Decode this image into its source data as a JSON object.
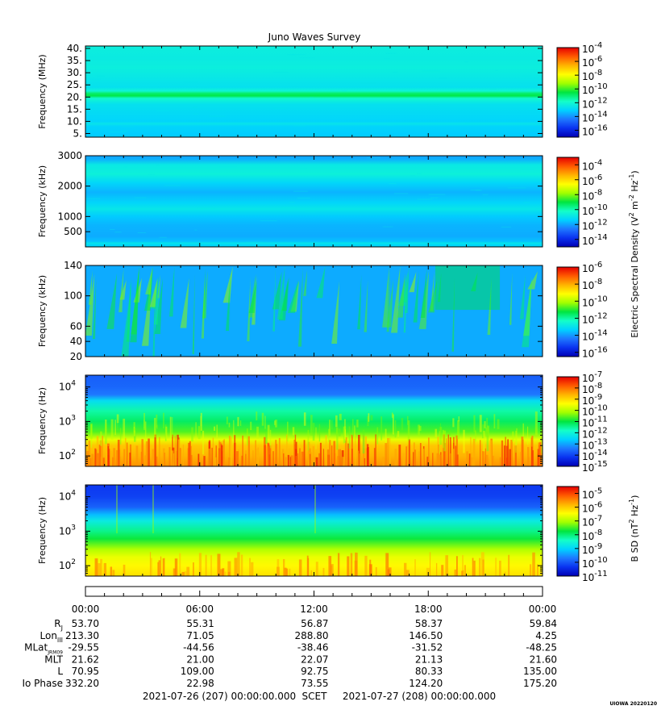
{
  "title": "Juno Waves Survey",
  "credit": "UIOWA 20220120",
  "unit_labels": {
    "electric": [
      "Electric Spectral Density (V",
      "2",
      " m",
      "-2",
      " Hz",
      "-1",
      ")"
    ],
    "magnetic": [
      "B SD (nT",
      "2",
      " Hz",
      "-1",
      ")"
    ]
  },
  "colors": {
    "scale": [
      "#0000b4",
      "#0a32f0",
      "#1e78ff",
      "#00d2ff",
      "#14ffc8",
      "#00e640",
      "#a0ff00",
      "#ffff00",
      "#ffb400",
      "#ff5a00",
      "#e60000"
    ]
  },
  "chart_data": [
    {
      "type": "heatmap",
      "panel": 1,
      "ylabel": "Frequency (MHz)",
      "yscale": "linear",
      "ylim": [
        3.5,
        41
      ],
      "yticks": [
        {
          "v": 5,
          "t": "5."
        },
        {
          "v": 10,
          "t": "10."
        },
        {
          "v": 15,
          "t": "15."
        },
        {
          "v": 20,
          "t": "20."
        },
        {
          "v": 25,
          "t": "25."
        },
        {
          "v": 30,
          "t": "30."
        },
        {
          "v": 35,
          "t": "35."
        },
        {
          "v": 40,
          "t": "40."
        }
      ],
      "colorbar": {
        "log_range": [
          -17,
          -4
        ],
        "ticks": [
          -4,
          -6,
          -8,
          -10,
          -12,
          -14,
          -16
        ]
      },
      "bands": [
        {
          "f": 3.5,
          "v": -13.2
        },
        {
          "f": 8,
          "v": -13.0
        },
        {
          "f": 9,
          "v": -12.6
        },
        {
          "f": 10,
          "v": -13.0
        },
        {
          "f": 17,
          "v": -12.7
        },
        {
          "f": 19.5,
          "v": -12.0
        },
        {
          "f": 20.5,
          "v": -10.6
        },
        {
          "f": 21.5,
          "v": -10.9
        },
        {
          "f": 22.5,
          "v": -12.1
        },
        {
          "f": 24,
          "v": -12.7
        },
        {
          "f": 28,
          "v": -12.5
        },
        {
          "f": 32,
          "v": -12.3
        },
        {
          "f": 36,
          "v": -12.4
        },
        {
          "f": 41,
          "v": -12.3
        }
      ]
    },
    {
      "type": "heatmap",
      "panel": 2,
      "ylabel": "Frequency (kHz)",
      "yscale": "linear",
      "ylim": [
        0,
        3000
      ],
      "yticks": [
        {
          "v": 500,
          "t": "500"
        },
        {
          "v": 1000,
          "t": "1000"
        },
        {
          "v": 2000,
          "t": "2000"
        },
        {
          "v": 3000,
          "t": "3000"
        }
      ],
      "colorbar": {
        "log_range": [
          -15,
          -3
        ],
        "ticks": [
          -4,
          -6,
          -8,
          -10,
          -12,
          -14
        ]
      },
      "bands": [
        {
          "f": 0,
          "v": -11.4
        },
        {
          "f": 80,
          "v": -11.2
        },
        {
          "f": 120,
          "v": -10.9
        },
        {
          "f": 180,
          "v": -11.6
        },
        {
          "f": 350,
          "v": -11.9
        },
        {
          "f": 700,
          "v": -11.8
        },
        {
          "f": 1000,
          "v": -11.5
        },
        {
          "f": 1250,
          "v": -10.9
        },
        {
          "f": 1450,
          "v": -11.3
        },
        {
          "f": 1800,
          "v": -11.8
        },
        {
          "f": 2100,
          "v": -11.3
        },
        {
          "f": 2400,
          "v": -10.6
        },
        {
          "f": 2700,
          "v": -10.8
        },
        {
          "f": 2900,
          "v": -11.9
        },
        {
          "f": 3000,
          "v": -12.0
        }
      ]
    },
    {
      "type": "heatmap",
      "panel": 3,
      "ylabel": "Frequency (kHz)",
      "yscale": "linear",
      "ylim": [
        20,
        140
      ],
      "yticks": [
        {
          "v": 20,
          "t": "20"
        },
        {
          "v": 40,
          "t": "40"
        },
        {
          "v": 60,
          "t": "60"
        },
        {
          "v": 100,
          "t": "100"
        },
        {
          "v": 140,
          "t": "140"
        }
      ],
      "colorbar": {
        "log_range": [
          -16.5,
          -6
        ],
        "ticks": [
          -6,
          -8,
          -10,
          -12,
          -14,
          -16
        ]
      },
      "bands": [
        {
          "f": 20,
          "v": -13.8
        },
        {
          "f": 140,
          "v": -13.8
        }
      ]
    },
    {
      "type": "heatmap",
      "panel": 4,
      "ylabel": "Frequency (Hz)",
      "yscale": "log",
      "ylim": [
        50,
        22000
      ],
      "yticks": [
        {
          "v": 100,
          "t": "10",
          "e": "2"
        },
        {
          "v": 1000,
          "t": "10",
          "e": "3"
        },
        {
          "v": 10000,
          "t": "10",
          "e": "4"
        }
      ],
      "colorbar": {
        "log_range": [
          -15,
          -7
        ],
        "ticks": [
          -7,
          -8,
          -9,
          -10,
          -11,
          -12,
          -13,
          -14,
          -15
        ]
      },
      "bands": [
        {
          "f": 50,
          "v": -8.3
        },
        {
          "f": 100,
          "v": -8.6
        },
        {
          "f": 200,
          "v": -8.8
        },
        {
          "f": 300,
          "v": -9.6
        },
        {
          "f": 500,
          "v": -10.6
        },
        {
          "f": 1000,
          "v": -11.2
        },
        {
          "f": 2000,
          "v": -11.6
        },
        {
          "f": 4000,
          "v": -12.4
        },
        {
          "f": 6000,
          "v": -13.4
        },
        {
          "f": 10000,
          "v": -13.6
        },
        {
          "f": 22000,
          "v": -13.7
        }
      ]
    },
    {
      "type": "heatmap",
      "panel": 5,
      "ylabel": "Frequency (Hz)",
      "yscale": "log",
      "ylim": [
        50,
        22000
      ],
      "yticks": [
        {
          "v": 100,
          "t": "10",
          "e": "2"
        },
        {
          "v": 1000,
          "t": "10",
          "e": "3"
        },
        {
          "v": 10000,
          "t": "10",
          "e": "4"
        }
      ],
      "colorbar": {
        "log_range": [
          -11,
          -4.5
        ],
        "ticks": [
          -5,
          -6,
          -7,
          -8,
          -9,
          -10,
          -11
        ]
      },
      "bands": [
        {
          "f": 50,
          "v": -6.2
        },
        {
          "f": 100,
          "v": -6.4
        },
        {
          "f": 180,
          "v": -6.6
        },
        {
          "f": 300,
          "v": -7.0
        },
        {
          "f": 600,
          "v": -7.7
        },
        {
          "f": 1000,
          "v": -8.1
        },
        {
          "f": 2000,
          "v": -8.7
        },
        {
          "f": 3000,
          "v": -9.2
        },
        {
          "f": 5000,
          "v": -9.9
        },
        {
          "f": 10000,
          "v": -10.2
        },
        {
          "f": 22000,
          "v": -10.3
        }
      ]
    }
  ],
  "time_axis": {
    "ticks": [
      "00:00",
      "06:00",
      "12:00",
      "18:00",
      "00:00"
    ]
  },
  "ephemeris": [
    {
      "label": "R",
      "sub": "J",
      "values": [
        "53.70",
        "55.31",
        "56.87",
        "58.37",
        "59.84"
      ]
    },
    {
      "label": "Lon",
      "sub": "III",
      "values": [
        "213.30",
        "71.05",
        "288.80",
        "146.50",
        "4.25"
      ]
    },
    {
      "label": "MLat",
      "sub": "JRM09",
      "values": [
        "-29.55",
        "-44.56",
        "-38.46",
        "-31.52",
        "-48.25"
      ]
    },
    {
      "label": "MLT",
      "sub": "",
      "values": [
        "21.62",
        "21.00",
        "22.07",
        "21.13",
        "21.60"
      ]
    },
    {
      "label": "L",
      "sub": "",
      "values": [
        "70.95",
        "109.00",
        "92.75",
        "80.33",
        "135.00"
      ]
    },
    {
      "label": "Io Phase",
      "sub": "",
      "values": [
        "332.20",
        "22.98",
        "73.55",
        "124.20",
        "175.20"
      ]
    }
  ],
  "footer": {
    "start": "2021-07-26 (207) 00:00:00.000",
    "center": "SCET",
    "end": "2021-07-27 (208) 00:00:00.000"
  }
}
